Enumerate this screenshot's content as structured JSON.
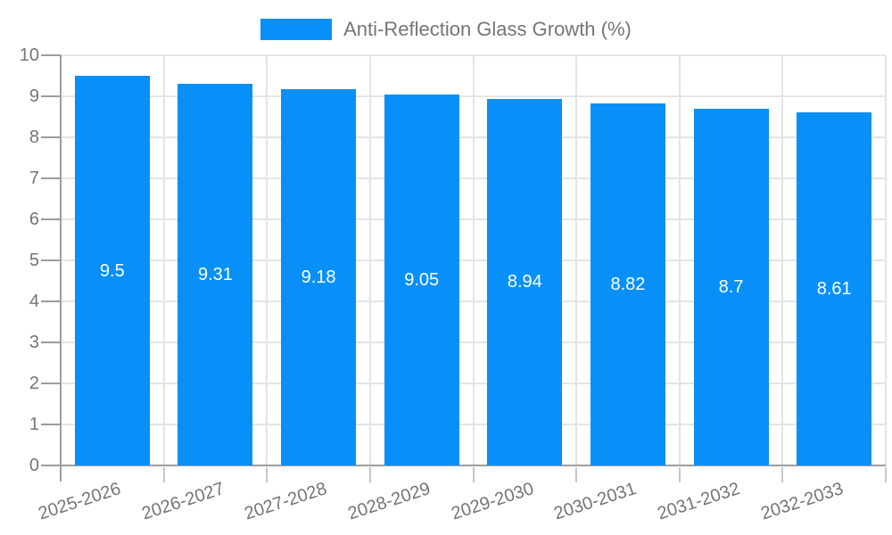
{
  "chart_data": {
    "type": "bar",
    "legend_label": "Anti-Reflection Glass Growth (%)",
    "categories": [
      "2025-2026",
      "2026-2027",
      "2027-2028",
      "2028-2029",
      "2029-2030",
      "2030-2031",
      "2031-2032",
      "2032-2033"
    ],
    "values": [
      9.5,
      9.31,
      9.18,
      9.05,
      8.94,
      8.82,
      8.7,
      8.61
    ],
    "value_labels_shown": true,
    "ylim": [
      0,
      10
    ],
    "ytick_interval": 1,
    "grid": true,
    "legend_position": "top-center",
    "x_label_rotation_deg": -18,
    "colors": {
      "bar": "#0890f8",
      "value_label": "#ffffff",
      "axis_text": "#757575",
      "legend_text": "#757575",
      "grid_line": "#e4e4e4",
      "axis_line": "#9e9e9e",
      "y_tick": "#9c9c9c",
      "x_tick": "#c6c6c6",
      "background": "#ffffff"
    }
  }
}
